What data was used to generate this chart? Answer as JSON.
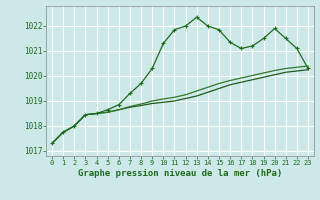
{
  "title": "Graphe pression niveau de la mer (hPa)",
  "background_color": "#cde8e8",
  "grid_color": "#b0d4d4",
  "line_color_main": "#1e6b1e",
  "line_color_flat1": "#1e5c1e",
  "line_color_flat2": "#2d7a2d",
  "xlim": [
    -0.5,
    23.5
  ],
  "ylim": [
    1016.8,
    1022.8
  ],
  "yticks": [
    1017,
    1018,
    1019,
    1020,
    1021,
    1022
  ],
  "xticks": [
    0,
    1,
    2,
    3,
    4,
    5,
    6,
    7,
    8,
    9,
    10,
    11,
    12,
    13,
    14,
    15,
    16,
    17,
    18,
    19,
    20,
    21,
    22,
    23
  ],
  "series1": [
    1017.3,
    1017.75,
    1018.0,
    1018.45,
    1018.5,
    1018.65,
    1018.85,
    1019.3,
    1019.7,
    1020.3,
    1021.3,
    1021.85,
    1022.0,
    1022.35,
    1022.0,
    1021.85,
    1021.35,
    1021.1,
    1021.2,
    1021.5,
    1021.9,
    1021.5,
    1021.1,
    1020.3
  ],
  "series2": [
    1017.3,
    1017.75,
    1018.0,
    1018.45,
    1018.5,
    1018.55,
    1018.65,
    1018.75,
    1018.82,
    1018.9,
    1018.95,
    1019.0,
    1019.1,
    1019.2,
    1019.35,
    1019.5,
    1019.65,
    1019.75,
    1019.85,
    1019.95,
    1020.05,
    1020.15,
    1020.2,
    1020.25
  ],
  "series3": [
    1017.3,
    1017.75,
    1018.0,
    1018.45,
    1018.5,
    1018.55,
    1018.65,
    1018.78,
    1018.88,
    1019.0,
    1019.08,
    1019.15,
    1019.25,
    1019.4,
    1019.55,
    1019.7,
    1019.82,
    1019.92,
    1020.02,
    1020.12,
    1020.22,
    1020.3,
    1020.35,
    1020.4
  ]
}
